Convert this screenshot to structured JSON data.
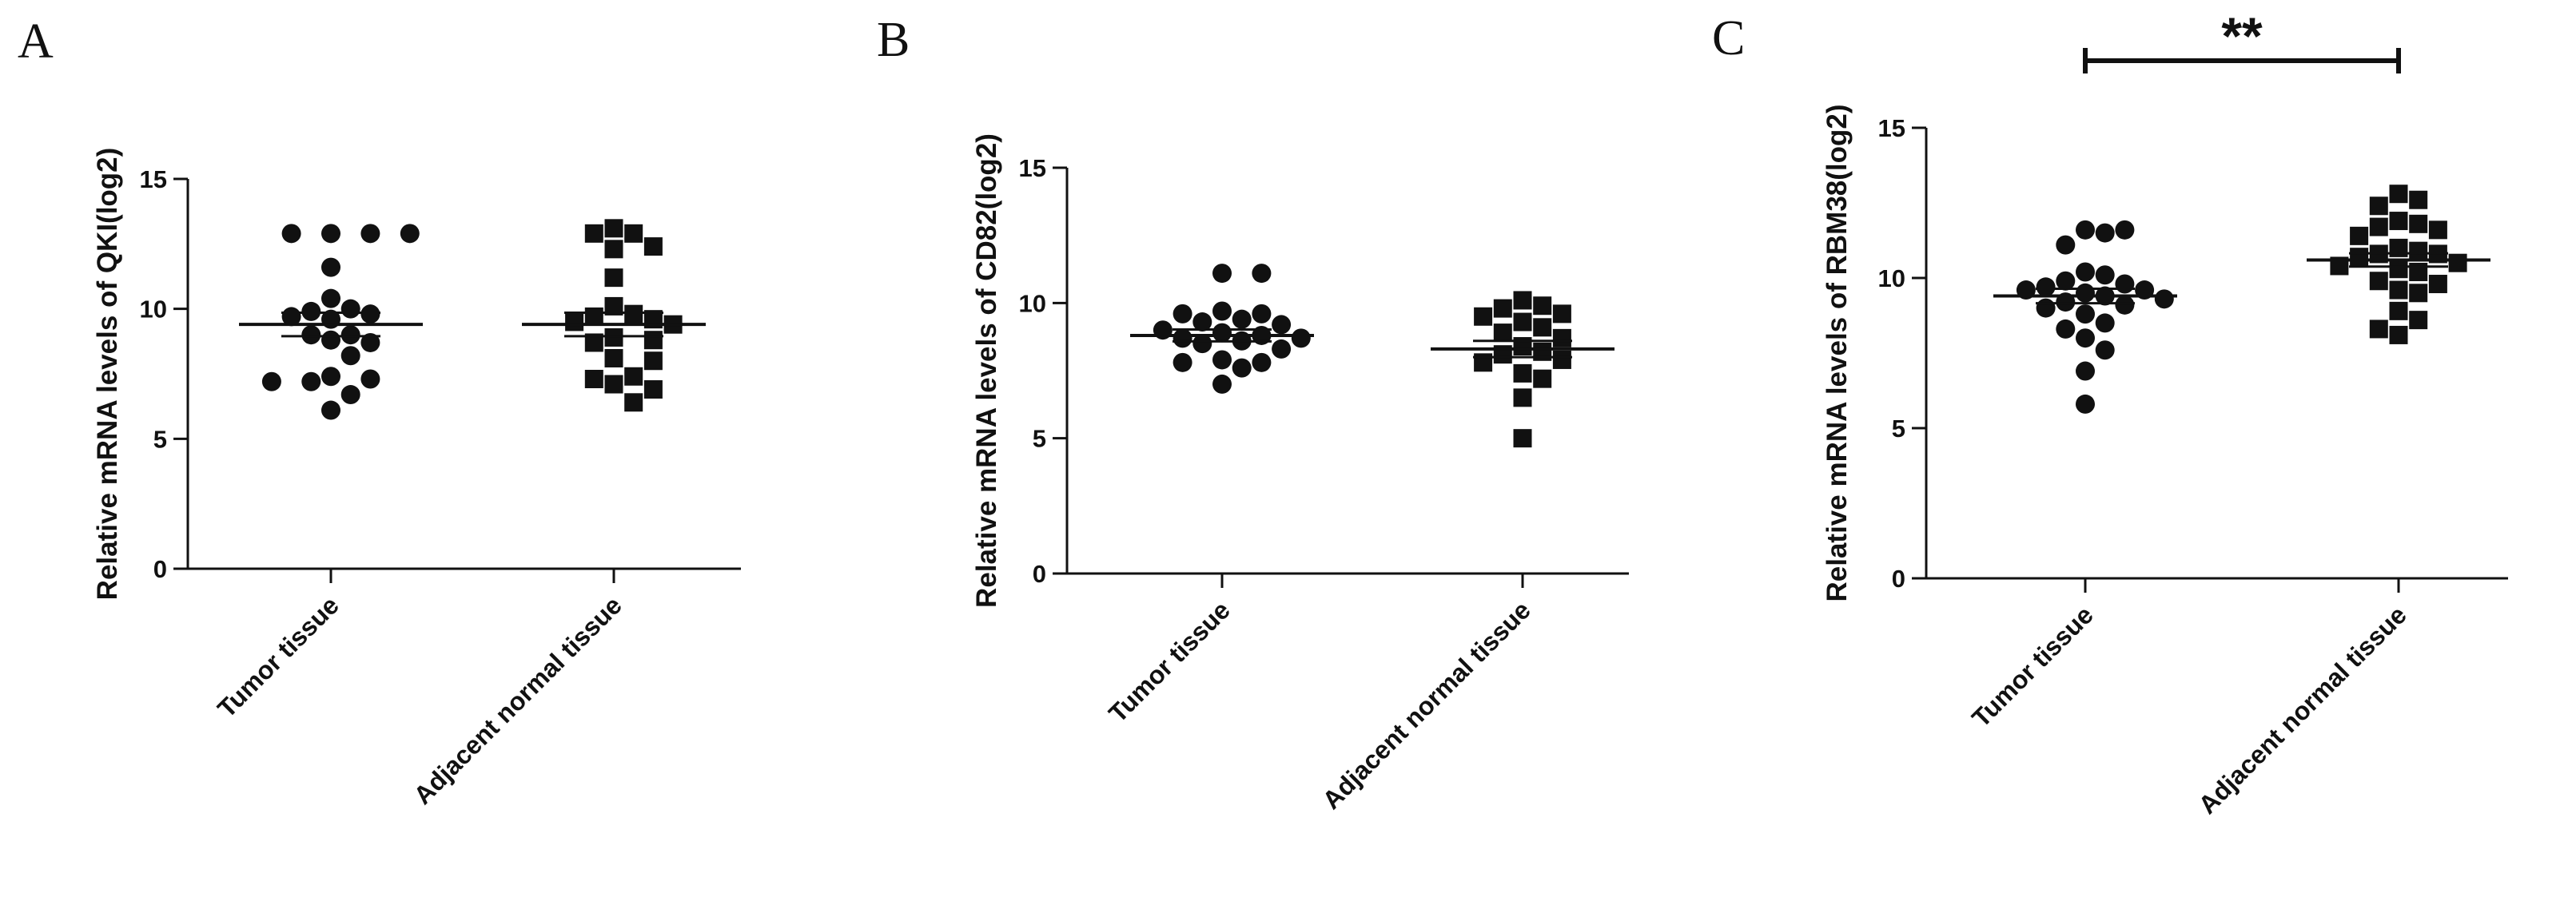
{
  "chart_data": [
    {
      "panel": "A",
      "type": "scatter",
      "ylabel": "Relative  mRNA levels of QKI(log2)",
      "xlabel": "",
      "ylim": [
        0,
        15
      ],
      "yticks": [
        0,
        5,
        10,
        15
      ],
      "categories": [
        "Tumor tissue",
        "Adjacent normal tissue"
      ],
      "series": [
        {
          "marker": "circle",
          "values": [
            12.9,
            12.9,
            12.9,
            12.9,
            11.6,
            10.4,
            10.0,
            9.9,
            9.8,
            9.7,
            9.6,
            9.0,
            9.0,
            8.8,
            8.7,
            8.2,
            7.4,
            7.3,
            7.2,
            7.2,
            6.7,
            6.1
          ],
          "mean": 9.4,
          "sem": 0.45
        },
        {
          "marker": "square",
          "values": [
            13.1,
            12.9,
            12.9,
            12.4,
            12.3,
            11.2,
            10.1,
            9.8,
            9.7,
            9.6,
            9.5,
            9.4,
            8.9,
            8.8,
            8.7,
            8.1,
            8.0,
            7.4,
            7.3,
            7.1,
            6.9,
            6.4
          ],
          "mean": 9.4,
          "sem": 0.45
        }
      ]
    },
    {
      "panel": "B",
      "type": "scatter",
      "ylabel": "Relative  mRNA levels of CD82(log2)",
      "xlabel": "",
      "ylim": [
        0,
        15
      ],
      "yticks": [
        0,
        5,
        10,
        15
      ],
      "categories": [
        "Tumor tissue",
        "Adjacent normal tissue"
      ],
      "series": [
        {
          "marker": "circle",
          "values": [
            11.1,
            11.1,
            9.7,
            9.6,
            9.6,
            9.4,
            9.3,
            9.2,
            9.0,
            8.9,
            8.8,
            8.7,
            8.7,
            8.6,
            8.5,
            8.3,
            7.9,
            7.8,
            7.8,
            7.6,
            7.0
          ],
          "mean": 8.8,
          "sem": 0.22
        },
        {
          "marker": "square",
          "values": [
            10.1,
            9.9,
            9.8,
            9.6,
            9.5,
            9.3,
            9.1,
            8.9,
            8.7,
            8.4,
            8.2,
            8.1,
            7.9,
            7.8,
            7.4,
            7.2,
            6.5,
            5.0
          ],
          "mean": 8.3,
          "sem": 0.3
        }
      ]
    },
    {
      "panel": "C",
      "type": "scatter",
      "ylabel": "Relative  mRNA levels of RBM38(log2)",
      "xlabel": "",
      "ylim": [
        0,
        15
      ],
      "yticks": [
        0,
        5,
        10,
        15
      ],
      "categories": [
        "Tumor tissue",
        "Adjacent normal tissue"
      ],
      "significance": "**",
      "series": [
        {
          "marker": "circle",
          "values": [
            11.6,
            11.6,
            11.5,
            11.1,
            10.2,
            10.1,
            9.9,
            9.8,
            9.7,
            9.6,
            9.6,
            9.5,
            9.4,
            9.3,
            9.2,
            9.1,
            9.0,
            8.8,
            8.5,
            8.3,
            8.0,
            7.6,
            6.9,
            5.8
          ],
          "mean": 9.4,
          "sem": 0.24
        },
        {
          "marker": "square",
          "values": [
            12.8,
            12.6,
            12.4,
            11.9,
            11.8,
            11.7,
            11.6,
            11.4,
            11.0,
            10.9,
            10.8,
            10.8,
            10.7,
            10.5,
            10.4,
            10.3,
            10.2,
            9.9,
            9.8,
            9.6,
            9.5,
            8.9,
            8.6,
            8.3,
            8.1
          ],
          "mean": 10.6,
          "sem": 0.22
        }
      ]
    }
  ]
}
